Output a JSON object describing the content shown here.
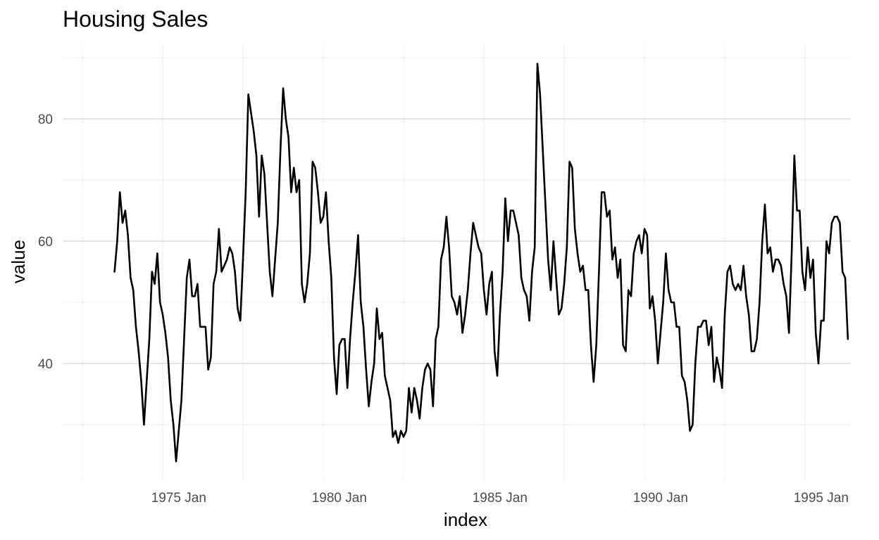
{
  "chart_data": {
    "type": "line",
    "title": "Housing Sales",
    "xlabel": "index",
    "ylabel": "value",
    "x_start": "1973 Jan",
    "frequency": "monthly",
    "xlim": [
      "1972 Jan",
      "1997 Jan"
    ],
    "ylim": [
      21,
      92
    ],
    "grid": true,
    "x_ticks": [
      {
        "label": "1975 Jan",
        "year": 1975
      },
      {
        "label": "1980 Jan",
        "year": 1980
      },
      {
        "label": "1985 Jan",
        "year": 1985
      },
      {
        "label": "1990 Jan",
        "year": 1990
      },
      {
        "label": "1995 Jan",
        "year": 1995
      }
    ],
    "y_ticks": [
      40,
      60,
      80
    ],
    "line_color": "#000000",
    "values": [
      55,
      60,
      68,
      63,
      65,
      61,
      54,
      52,
      46,
      42,
      37,
      30,
      37,
      44,
      55,
      53,
      58,
      50,
      48,
      45,
      41,
      34,
      30,
      24,
      29,
      34,
      44,
      54,
      57,
      51,
      51,
      53,
      46,
      46,
      46,
      39,
      41,
      53,
      55,
      62,
      55,
      56,
      57,
      59,
      58,
      55,
      49,
      47,
      57,
      68,
      84,
      81,
      78,
      74,
      64,
      74,
      71,
      63,
      55,
      51,
      57,
      63,
      75,
      85,
      80,
      77,
      68,
      72,
      68,
      70,
      53,
      50,
      53,
      58,
      73,
      72,
      68,
      63,
      64,
      68,
      60,
      54,
      41,
      35,
      43,
      44,
      44,
      36,
      44,
      50,
      55,
      61,
      50,
      46,
      39,
      33,
      37,
      40,
      49,
      44,
      45,
      38,
      36,
      34,
      28,
      29,
      27,
      29,
      28,
      29,
      36,
      32,
      36,
      34,
      31,
      36,
      39,
      40,
      39,
      33,
      44,
      46,
      57,
      59,
      64,
      59,
      51,
      50,
      48,
      51,
      45,
      48,
      52,
      58,
      63,
      61,
      59,
      58,
      52,
      48,
      53,
      55,
      42,
      38,
      48,
      55,
      67,
      60,
      65,
      65,
      63,
      61,
      54,
      52,
      51,
      47,
      55,
      59,
      89,
      84,
      75,
      66,
      57,
      52,
      60,
      54,
      48,
      49,
      53,
      59,
      73,
      72,
      62,
      58,
      55,
      56,
      52,
      52,
      43,
      37,
      43,
      55,
      68,
      68,
      64,
      65,
      57,
      59,
      54,
      57,
      43,
      42,
      52,
      51,
      58,
      60,
      61,
      58,
      62,
      61,
      49,
      51,
      47,
      40,
      45,
      50,
      58,
      52,
      50,
      50,
      46,
      46,
      38,
      37,
      34,
      29,
      30,
      40,
      46,
      46,
      47,
      47,
      43,
      46,
      37,
      41,
      39,
      36,
      48,
      55,
      56,
      53,
      52,
      53,
      52,
      56,
      51,
      48,
      42,
      42,
      44,
      50,
      60,
      66,
      58,
      59,
      55,
      57,
      57,
      56,
      53,
      51,
      45,
      58,
      74,
      65,
      65,
      55,
      52,
      59,
      54,
      57,
      45,
      40,
      47,
      47,
      60,
      58,
      63,
      64,
      64,
      63,
      55,
      54,
      44
    ]
  }
}
